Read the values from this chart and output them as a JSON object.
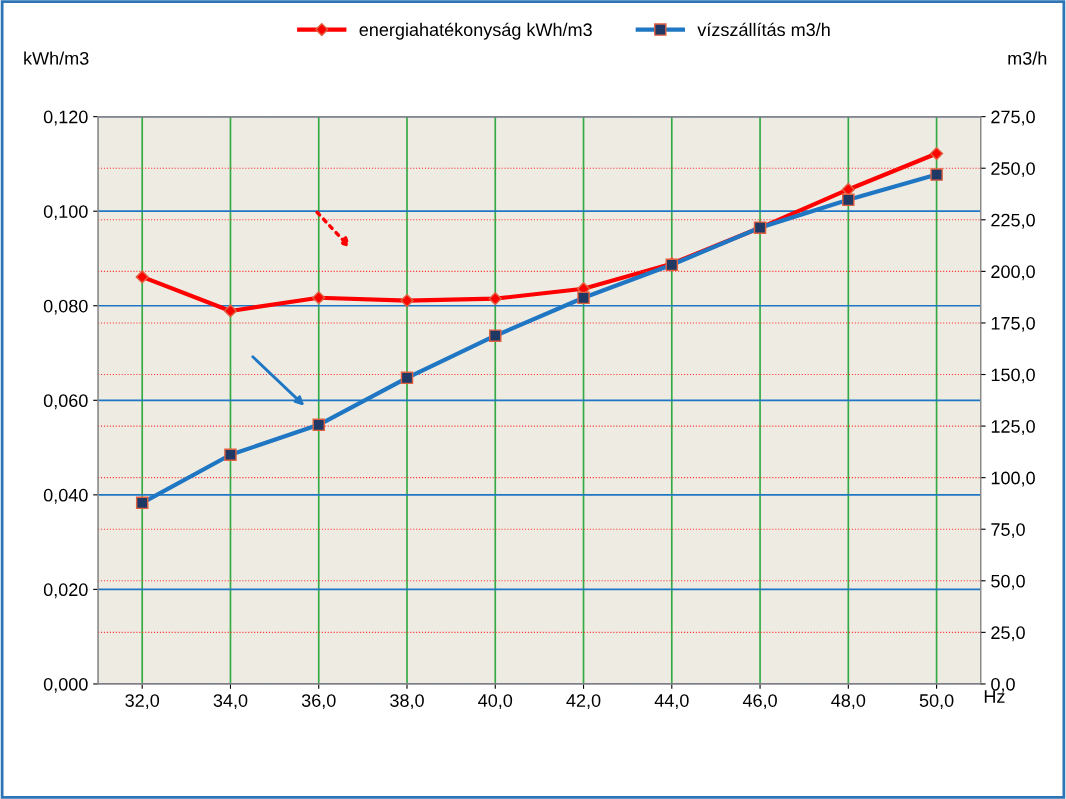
{
  "chart_data": {
    "type": "line",
    "categories": [
      "32,0",
      "34,0",
      "36,0",
      "38,0",
      "40,0",
      "42,0",
      "44,0",
      "46,0",
      "48,0",
      "50,0"
    ],
    "xlabel": "Hz",
    "ylabel": "kWh/m3",
    "y2label": "m3/h",
    "series": [
      {
        "name": "energiahatékonyság kWh/m3",
        "color": "#ff0000",
        "marker": "diamond",
        "values": [
          0.0861,
          0.0789,
          0.0817,
          0.0811,
          0.0815,
          0.0836,
          0.0889,
          0.0965,
          0.1046,
          0.1122
        ]
      },
      {
        "name": "vízszállítás m3/h",
        "color": "#1f77c4",
        "marker": "square",
        "axis": "y2",
        "values": [
          87.8,
          111.1,
          125.6,
          148.4,
          168.8,
          187.2,
          203.2,
          221.2,
          234.7,
          246.9
        ]
      }
    ],
    "ylim": [
      0,
      0.12
    ],
    "yticks": [
      {
        "value": 0,
        "label": "0,000"
      },
      {
        "value": 0.02,
        "label": "0,020"
      },
      {
        "value": 0.04,
        "label": "0,040"
      },
      {
        "value": 0.06,
        "label": "0,060"
      },
      {
        "value": 0.08,
        "label": "0,080"
      },
      {
        "value": 0.1,
        "label": "0,100"
      },
      {
        "value": 0.12,
        "label": "0,120"
      }
    ],
    "y2lim": [
      0,
      275
    ],
    "y2ticks": [
      {
        "value": 0,
        "label": "0,0"
      },
      {
        "value": 25,
        "label": "25,0"
      },
      {
        "value": 50,
        "label": "50,0"
      },
      {
        "value": 75,
        "label": "75,0"
      },
      {
        "value": 100,
        "label": "100,0"
      },
      {
        "value": 125,
        "label": "125,0"
      },
      {
        "value": 150,
        "label": "150,0"
      },
      {
        "value": 175,
        "label": "175,0"
      },
      {
        "value": 200,
        "label": "200,0"
      },
      {
        "value": 225,
        "label": "225,0"
      },
      {
        "value": 250,
        "label": "250,0"
      },
      {
        "value": 275,
        "label": "275,0"
      }
    ],
    "grid": true,
    "legend": "top",
    "line_style": "solid"
  }
}
